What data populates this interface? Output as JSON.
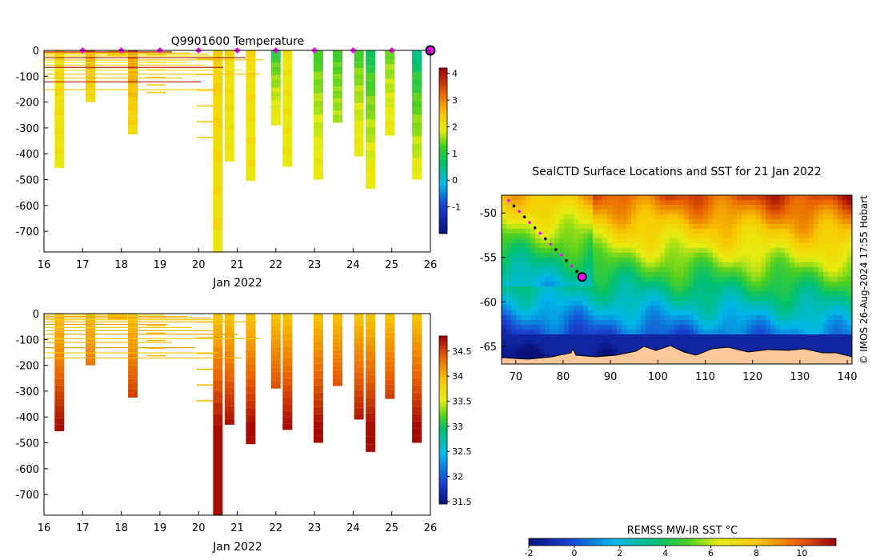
{
  "chart_data": [
    {
      "type": "heatmap",
      "title": "Q9901600  Temperature",
      "xlabel": "Jan 2022",
      "ylabel": "",
      "xlim": [
        16,
        26
      ],
      "ylim": [
        -780,
        0
      ],
      "x_ticks": [
        "16",
        "17",
        "18",
        "19",
        "20",
        "21",
        "22",
        "23",
        "24",
        "25",
        "26"
      ],
      "y_ticks": [
        "0",
        "-100",
        "-200",
        "-300",
        "-400",
        "-500",
        "-600",
        "-700"
      ],
      "colorbar": {
        "min": -2,
        "max": 4.2,
        "ticks": [
          "-1",
          "0",
          "1",
          "2",
          "3",
          "4"
        ]
      },
      "surface_markers_days": [
        17,
        18,
        19,
        20,
        21,
        22,
        23,
        24,
        25,
        26
      ],
      "profiles": [
        {
          "day": 16.4,
          "depth": 455,
          "kind": "profile",
          "top": 2.2,
          "bottom": 2.0
        },
        {
          "day": 17.2,
          "depth": 200,
          "kind": "profile",
          "top": 3.2,
          "bottom": 2.2
        },
        {
          "day": 17.9,
          "depth": 20,
          "kind": "line"
        },
        {
          "day": 18.3,
          "depth": 325,
          "kind": "profile",
          "top": 3.4,
          "bottom": 2.2
        },
        {
          "day": 18.9,
          "depth": 175,
          "kind": "lines"
        },
        {
          "day": 20.2,
          "depth": 365,
          "kind": "lines"
        },
        {
          "day": 20.5,
          "depth": 780,
          "kind": "profile",
          "top": 2.4,
          "bottom": 2.1
        },
        {
          "day": 20.8,
          "depth": 430,
          "kind": "profile",
          "top": 2.2,
          "bottom": 2.0
        },
        {
          "day": 21.35,
          "depth": 505,
          "kind": "profile",
          "top": 2.2,
          "bottom": 2.0
        },
        {
          "day": 22.0,
          "depth": 290,
          "kind": "profile",
          "top": 0.8,
          "bottom": 2.0
        },
        {
          "day": 22.3,
          "depth": 450,
          "kind": "profile",
          "top": 2.0,
          "bottom": 2.0
        },
        {
          "day": 23.1,
          "depth": 500,
          "kind": "profile",
          "top": 1.0,
          "bottom": 2.0
        },
        {
          "day": 23.6,
          "depth": 280,
          "kind": "profile",
          "top": 1.0,
          "bottom": 1.6
        },
        {
          "day": 24.15,
          "depth": 410,
          "kind": "profile",
          "top": 1.0,
          "bottom": 2.0
        },
        {
          "day": 24.45,
          "depth": 535,
          "kind": "profile",
          "top": 0.6,
          "bottom": 2.0
        },
        {
          "day": 24.95,
          "depth": 330,
          "kind": "profile",
          "top": 1.2,
          "bottom": 2.0
        },
        {
          "day": 25.65,
          "depth": 500,
          "kind": "profile",
          "top": 0.3,
          "bottom": 1.9
        }
      ]
    },
    {
      "type": "heatmap",
      "title": "",
      "xlabel": "Jan 2022",
      "ylabel": "",
      "xlim": [
        16,
        26
      ],
      "ylim": [
        -780,
        0
      ],
      "x_ticks": [
        "16",
        "17",
        "18",
        "19",
        "20",
        "21",
        "22",
        "23",
        "24",
        "25",
        "26"
      ],
      "y_ticks": [
        "0",
        "-100",
        "-200",
        "-300",
        "-400",
        "-500",
        "-600",
        "-700"
      ],
      "colorbar": {
        "min": 31.45,
        "max": 34.8,
        "ticks": [
          "31.5",
          "32",
          "32.5",
          "33",
          "33.5",
          "34",
          "34.5"
        ]
      }
    },
    {
      "type": "heatmap",
      "title": "SealCTD Surface Locations and SST for 21 Jan 2022",
      "xlabel": "",
      "ylabel": "",
      "xlim": [
        67,
        141
      ],
      "ylim": [
        -67,
        -48
      ],
      "x_ticks": [
        "70",
        "80",
        "90",
        "100",
        "110",
        "120",
        "130",
        "140"
      ],
      "y_ticks": [
        "-50",
        "-55",
        "-60",
        "-65"
      ],
      "track_end": [
        84,
        -57.2
      ],
      "colorbar": {
        "label": "REMSS MW-IR SST °C",
        "min": -2,
        "max": 11.5,
        "ticks": [
          "-2",
          "0",
          "2",
          "4",
          "6",
          "8",
          "10"
        ]
      },
      "credit": "© IMOS 26-Aug-2024 17:55 Hobart"
    }
  ]
}
